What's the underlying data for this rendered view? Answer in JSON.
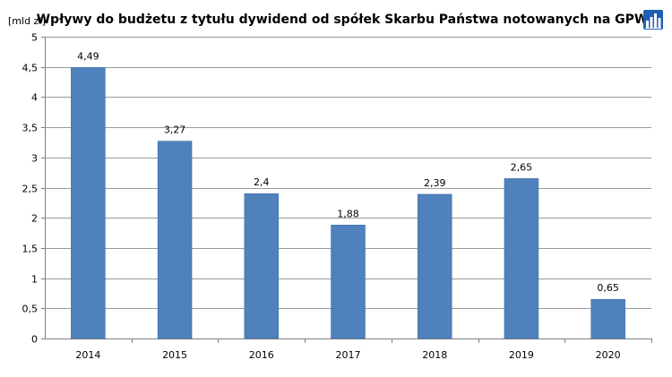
{
  "chart_data": {
    "type": "bar",
    "title": "Wpływy do budżetu z tytułu dywidend od spółek Skarbu Państwa notowanych na GPW",
    "ylabel": "[mld zł]",
    "xlabel": "",
    "categories": [
      "2014",
      "2015",
      "2016",
      "2017",
      "2018",
      "2019",
      "2020"
    ],
    "values": [
      4.49,
      3.27,
      2.4,
      1.88,
      2.39,
      2.65,
      0.65
    ],
    "value_labels": [
      "4,49",
      "3,27",
      "2,4",
      "1,88",
      "2,39",
      "2,65",
      "0,65"
    ],
    "ylim": [
      0,
      5
    ],
    "yticks": [
      0,
      0.5,
      1,
      1.5,
      2,
      2.5,
      3,
      3.5,
      4,
      4.5,
      5
    ],
    "ytick_labels": [
      "0",
      "0,5",
      "1",
      "1,5",
      "2",
      "2,5",
      "3",
      "3,5",
      "4",
      "4,5",
      "5"
    ],
    "grid": true,
    "legend": "none",
    "colors": {
      "bar_fill": "#4f81bd",
      "bar_stroke": "#3c6aa3",
      "grid": "#9a9a9a",
      "background": "#ffffff"
    }
  },
  "logo": {
    "icon": "bar-chart-logo-icon",
    "colors": [
      "#1f5fb4",
      "#ffffff"
    ]
  }
}
